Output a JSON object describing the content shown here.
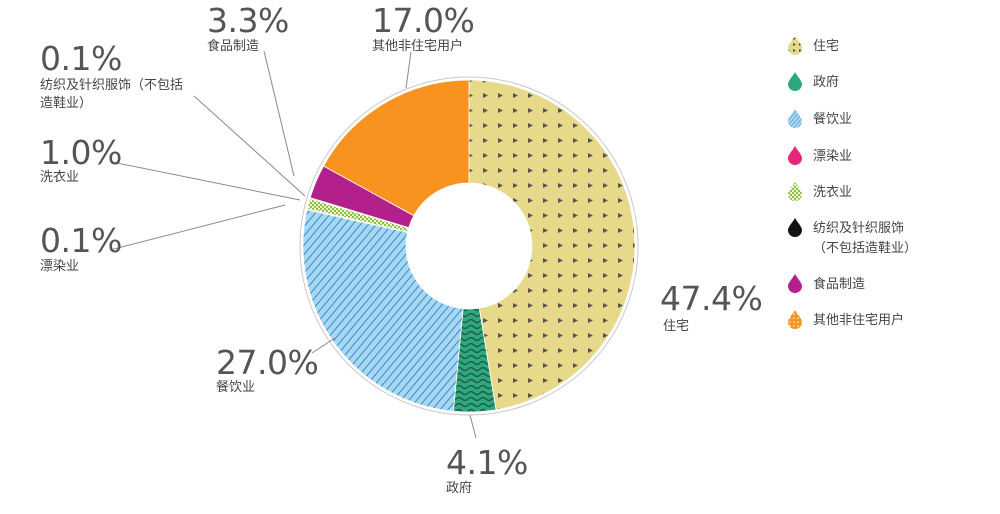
{
  "chart_data": {
    "type": "pie",
    "title": "",
    "series": [
      {
        "name": "住宅",
        "value": 47.4,
        "pct_label": "47.4%",
        "label_lines": [
          "住宅"
        ],
        "legend_lines": [
          "住宅"
        ],
        "color": "#e6d98a",
        "pattern": "triangles"
      },
      {
        "name": "政府",
        "value": 4.1,
        "pct_label": "4.1%",
        "label_lines": [
          "政府"
        ],
        "legend_lines": [
          "政府"
        ],
        "color": "#2fa87e",
        "pattern": "waves"
      },
      {
        "name": "餐饮业",
        "value": 27.0,
        "pct_label": "27.0%",
        "label_lines": [
          "餐饮业"
        ],
        "legend_lines": [
          "餐饮业"
        ],
        "color": "#a9d7f1",
        "pattern": "diagonal"
      },
      {
        "name": "漂染业",
        "value": 0.1,
        "pct_label": "0.1%",
        "label_lines": [
          "漂染业"
        ],
        "legend_lines": [
          "漂染业"
        ],
        "color": "#e8257a",
        "pattern": "solid"
      },
      {
        "name": "洗衣业",
        "value": 1.0,
        "pct_label": "1.0%",
        "label_lines": [
          "洗衣业"
        ],
        "legend_lines": [
          "洗衣业"
        ],
        "color": "#d4e6a2",
        "pattern": "checker"
      },
      {
        "name": "纺织及针织服饰（不包括造鞋业）",
        "value": 0.1,
        "pct_label": "0.1%",
        "label_lines": [
          "纺织及针织服饰（不包括",
          "造鞋业）"
        ],
        "legend_lines": [
          "纺织及针织服饰",
          "（不包括造鞋业）"
        ],
        "color": "#111111",
        "pattern": "solid"
      },
      {
        "name": "食品制造",
        "value": 3.3,
        "pct_label": "3.3%",
        "label_lines": [
          "食品制造"
        ],
        "legend_lines": [
          "食品制造"
        ],
        "color": "#b31f8b",
        "pattern": "solid"
      },
      {
        "name": "其他非住宅用户",
        "value": 17.0,
        "pct_label": "17.0%",
        "label_lines": [
          "其他非住宅用户"
        ],
        "legend_lines": [
          "其他非住宅用户"
        ],
        "color": "#f7931e",
        "pattern": "solid"
      }
    ],
    "legend_position": "right"
  }
}
